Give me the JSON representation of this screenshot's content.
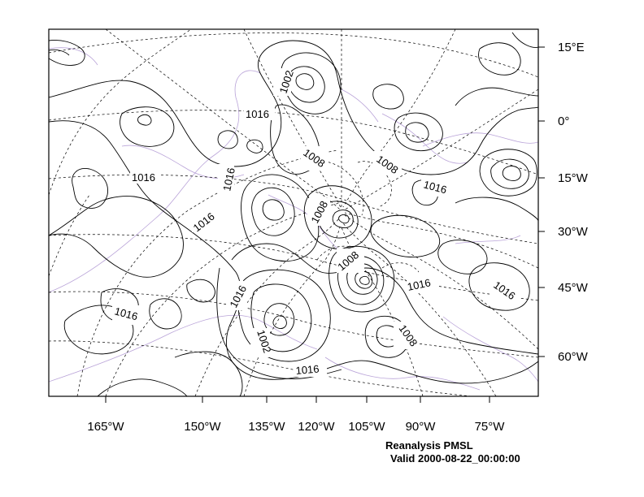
{
  "caption": {
    "title": "Reanalysis PMSL",
    "valid": "Valid 2000-08-22_00:00:00"
  },
  "axes": {
    "bottom_labels": [
      "165°W",
      "150°W",
      "135°W",
      "120°W",
      "105°W",
      "90°W",
      "75°W"
    ],
    "right_labels": [
      "15°E",
      "0°",
      "15°W",
      "30°W",
      "45°W",
      "60°W"
    ]
  },
  "contour_labels": [
    "1002",
    "1016",
    "1008",
    "1008",
    "1016",
    "1016",
    "1008",
    "1016",
    "1016",
    "1008",
    "1016",
    "1016",
    "1016",
    "1016",
    "1008",
    "1002",
    "1016"
  ],
  "colors": {
    "contour": "#000000",
    "coastline": "#b9a3d8",
    "frame": "#000000"
  }
}
